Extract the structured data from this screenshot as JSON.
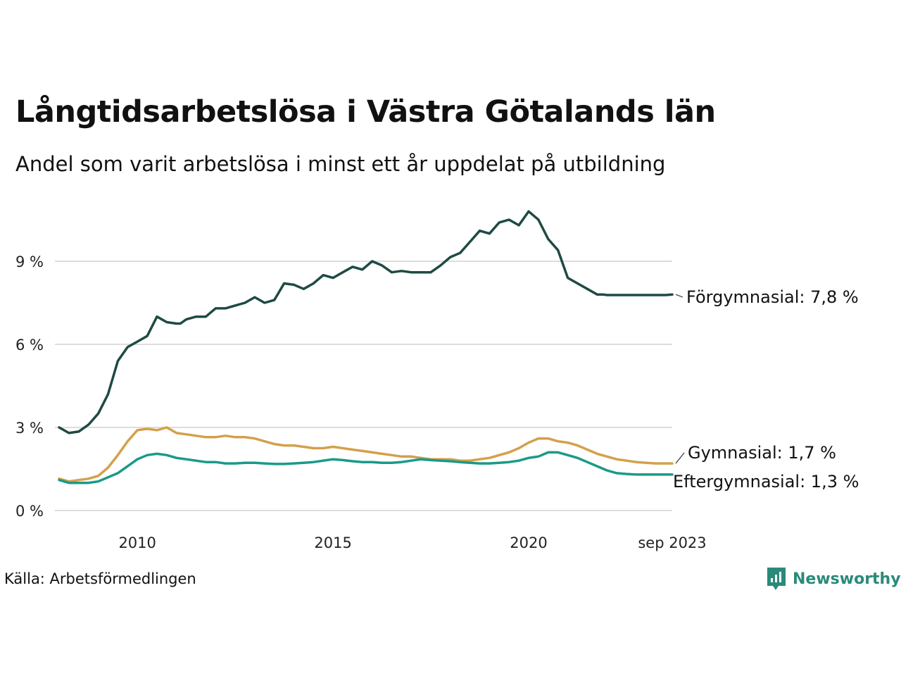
{
  "title": "Långtidsarbetslösa i Västra Götalands län",
  "subtitle": "Andel som varit arbetslösa i minst ett år uppdelat på utbildning",
  "source": "Källa: Arbetsförmedlingen",
  "brand": "Newsworthy",
  "brand_icon": "newsworthy-logo-icon",
  "colors": {
    "forgymnasial": "#1f4a44",
    "gymnasial": "#d4a04c",
    "eftergymnasial": "#1a9a88",
    "grid": "#dddddd"
  },
  "chart_data": {
    "type": "line",
    "title": "Långtidsarbetslösa i Västra Götalands län",
    "subtitle": "Andel som varit arbetslösa i minst ett år uppdelat på utbildning",
    "ylim": [
      0,
      11
    ],
    "yticks": [
      0,
      3,
      6,
      9
    ],
    "ytick_labels": [
      "0 %",
      "3 %",
      "6 %",
      "9 %"
    ],
    "xlim": [
      2008.0,
      2023.67
    ],
    "xticks": [
      2010,
      2015,
      2020,
      2023.67
    ],
    "xtick_labels": [
      "2010",
      "2015",
      "2020",
      "sep 2023"
    ],
    "grid": true,
    "series": [
      {
        "name": "Förgymnasial",
        "label": "Förgymnasial: 7,8 %",
        "color": "#1f4a44",
        "x": [
          2008.0,
          2008.25,
          2008.5,
          2008.75,
          2009.0,
          2009.25,
          2009.5,
          2009.75,
          2010.0,
          2010.25,
          2010.5,
          2010.75,
          2011.0,
          2011.1,
          2011.25,
          2011.5,
          2011.75,
          2012.0,
          2012.25,
          2012.5,
          2012.75,
          2013.0,
          2013.25,
          2013.5,
          2013.75,
          2014.0,
          2014.25,
          2014.5,
          2014.75,
          2015.0,
          2015.25,
          2015.5,
          2015.75,
          2016.0,
          2016.25,
          2016.5,
          2016.75,
          2017.0,
          2017.25,
          2017.5,
          2017.75,
          2018.0,
          2018.25,
          2018.5,
          2018.75,
          2019.0,
          2019.25,
          2019.5,
          2019.75,
          2020.0,
          2020.25,
          2020.5,
          2020.75,
          2021.0,
          2021.25,
          2021.5,
          2021.75,
          2021.9,
          2022.0,
          2022.25,
          2022.5,
          2022.75,
          2023.0,
          2023.25,
          2023.5,
          2023.67
        ],
        "values": [
          3.0,
          2.8,
          2.85,
          3.1,
          3.5,
          4.2,
          5.4,
          5.9,
          6.1,
          6.3,
          7.0,
          6.8,
          6.75,
          6.75,
          6.9,
          7.0,
          7.0,
          7.3,
          7.3,
          7.4,
          7.5,
          7.7,
          7.5,
          7.6,
          8.2,
          8.15,
          8.0,
          8.2,
          8.5,
          8.4,
          8.6,
          8.8,
          8.7,
          9.0,
          8.85,
          8.6,
          8.65,
          8.6,
          8.6,
          8.6,
          8.85,
          9.15,
          9.3,
          9.7,
          10.1,
          10.0,
          10.4,
          10.5,
          10.3,
          10.8,
          10.5,
          9.8,
          9.4,
          8.4,
          8.2,
          8.0,
          7.8,
          7.8,
          7.78,
          7.78,
          7.78,
          7.78,
          7.78,
          7.78,
          7.78,
          7.8
        ]
      },
      {
        "name": "Gymnasial",
        "label": "Gymnasial: 1,7 %",
        "color": "#d4a04c",
        "x": [
          2008.0,
          2008.25,
          2008.5,
          2008.75,
          2009.0,
          2009.25,
          2009.5,
          2009.75,
          2010.0,
          2010.25,
          2010.5,
          2010.75,
          2011.0,
          2011.25,
          2011.5,
          2011.75,
          2012.0,
          2012.25,
          2012.5,
          2012.75,
          2013.0,
          2013.25,
          2013.5,
          2013.75,
          2014.0,
          2014.25,
          2014.5,
          2014.75,
          2015.0,
          2015.25,
          2015.5,
          2015.75,
          2016.0,
          2016.25,
          2016.5,
          2016.75,
          2017.0,
          2017.25,
          2017.5,
          2017.75,
          2018.0,
          2018.25,
          2018.5,
          2018.75,
          2019.0,
          2019.25,
          2019.5,
          2019.75,
          2020.0,
          2020.25,
          2020.5,
          2020.75,
          2021.0,
          2021.25,
          2021.5,
          2021.75,
          2022.0,
          2022.25,
          2022.5,
          2022.75,
          2023.0,
          2023.25,
          2023.5,
          2023.67
        ],
        "values": [
          1.15,
          1.05,
          1.1,
          1.15,
          1.25,
          1.55,
          2.0,
          2.5,
          2.9,
          2.95,
          2.9,
          3.0,
          2.8,
          2.75,
          2.7,
          2.65,
          2.65,
          2.7,
          2.65,
          2.65,
          2.6,
          2.5,
          2.4,
          2.35,
          2.35,
          2.3,
          2.25,
          2.25,
          2.3,
          2.25,
          2.2,
          2.15,
          2.1,
          2.05,
          2.0,
          1.95,
          1.95,
          1.9,
          1.85,
          1.85,
          1.85,
          1.8,
          1.8,
          1.85,
          1.9,
          2.0,
          2.1,
          2.25,
          2.45,
          2.6,
          2.6,
          2.5,
          2.45,
          2.35,
          2.2,
          2.05,
          1.95,
          1.85,
          1.8,
          1.75,
          1.72,
          1.7,
          1.7,
          1.7
        ]
      },
      {
        "name": "Eftergymnasial",
        "label": "Eftergymnasial: 1,3 %",
        "color": "#1a9a88",
        "x": [
          2008.0,
          2008.25,
          2008.5,
          2008.75,
          2009.0,
          2009.25,
          2009.5,
          2009.75,
          2010.0,
          2010.25,
          2010.5,
          2010.75,
          2011.0,
          2011.25,
          2011.5,
          2011.75,
          2012.0,
          2012.25,
          2012.5,
          2012.75,
          2013.0,
          2013.25,
          2013.5,
          2013.75,
          2014.0,
          2014.25,
          2014.5,
          2014.75,
          2015.0,
          2015.25,
          2015.5,
          2015.75,
          2016.0,
          2016.25,
          2016.5,
          2016.75,
          2017.0,
          2017.25,
          2017.5,
          2017.75,
          2018.0,
          2018.25,
          2018.5,
          2018.75,
          2019.0,
          2019.25,
          2019.5,
          2019.75,
          2020.0,
          2020.25,
          2020.5,
          2020.75,
          2021.0,
          2021.25,
          2021.5,
          2021.75,
          2022.0,
          2022.25,
          2022.5,
          2022.75,
          2023.0,
          2023.25,
          2023.5,
          2023.67
        ],
        "values": [
          1.1,
          1.0,
          1.0,
          1.0,
          1.05,
          1.2,
          1.35,
          1.6,
          1.85,
          2.0,
          2.05,
          2.0,
          1.9,
          1.85,
          1.8,
          1.75,
          1.75,
          1.7,
          1.7,
          1.72,
          1.72,
          1.7,
          1.68,
          1.68,
          1.7,
          1.72,
          1.75,
          1.8,
          1.85,
          1.82,
          1.78,
          1.75,
          1.75,
          1.72,
          1.72,
          1.75,
          1.8,
          1.85,
          1.82,
          1.8,
          1.78,
          1.75,
          1.72,
          1.7,
          1.7,
          1.72,
          1.75,
          1.8,
          1.9,
          1.95,
          2.1,
          2.1,
          2.0,
          1.9,
          1.75,
          1.6,
          1.45,
          1.35,
          1.32,
          1.3,
          1.3,
          1.3,
          1.3,
          1.3
        ]
      }
    ]
  }
}
